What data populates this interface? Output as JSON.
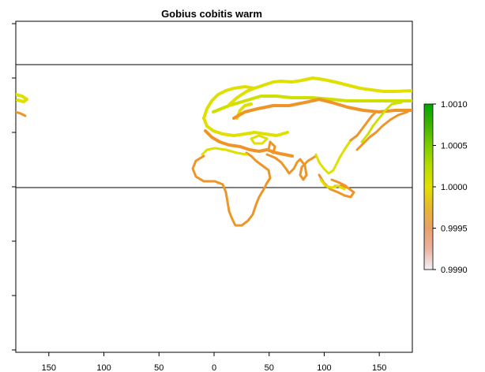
{
  "title": "Gobius cobitis warm",
  "colors": {
    "warm_yellow": "#e0e000",
    "yellow_green": "#cfe000",
    "orange": "#ef9528",
    "dark_orange": "#e8862a",
    "frame": "#000000"
  },
  "map": {
    "x_range": [
      -180,
      180
    ],
    "y_range": [
      -90,
      90
    ],
    "x_ticks": [
      {
        "value": -150,
        "label": "150"
      },
      {
        "value": -100,
        "label": "100"
      },
      {
        "value": -50,
        "label": "50"
      },
      {
        "value": 0,
        "label": "0"
      },
      {
        "value": 50,
        "label": "50"
      },
      {
        "value": 100,
        "label": "100"
      },
      {
        "value": 150,
        "label": "150"
      }
    ],
    "reference_lines_lat": [
      66.5,
      0
    ]
  },
  "legend": {
    "type": "colorbar",
    "range": [
      0.999,
      1.001
    ],
    "labels": [
      {
        "value": 1.001,
        "text": "1.0010"
      },
      {
        "value": 1.0005,
        "text": "1.0005"
      },
      {
        "value": 1.0,
        "text": "1.0000"
      },
      {
        "value": 0.9995,
        "text": "0.9995"
      },
      {
        "value": 0.999,
        "text": "0.9990"
      }
    ],
    "gradient_stops": [
      {
        "value": 0.999,
        "color": "#f2f2f2"
      },
      {
        "value": 0.99925,
        "color": "#ebb2a0"
      },
      {
        "value": 0.9995,
        "color": "#e8a06a"
      },
      {
        "value": 0.99975,
        "color": "#e6b830"
      },
      {
        "value": 1.0,
        "color": "#e0e000"
      },
      {
        "value": 1.00025,
        "color": "#b6dc00"
      },
      {
        "value": 1.0005,
        "color": "#7ccc00"
      },
      {
        "value": 1.00075,
        "color": "#3eb300"
      },
      {
        "value": 1.001,
        "color": "#00a600"
      }
    ]
  }
}
